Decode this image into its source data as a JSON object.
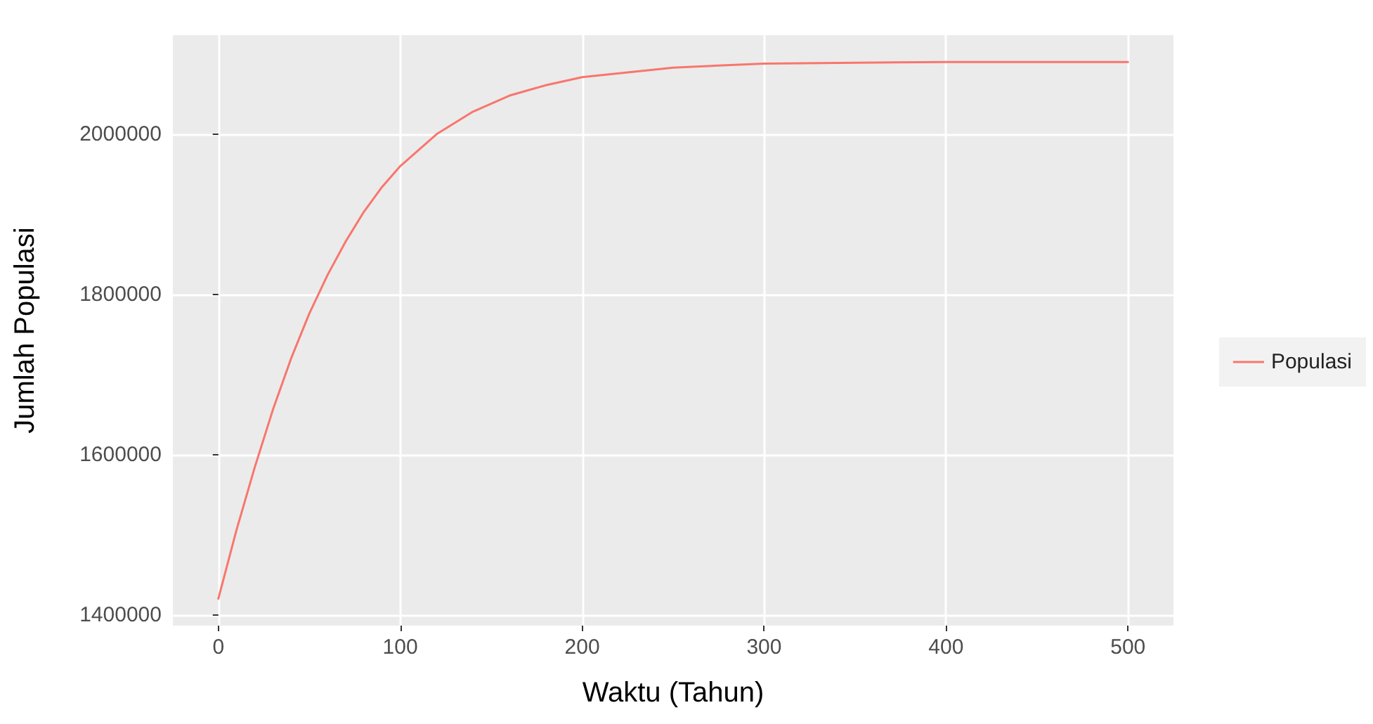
{
  "chart_data": {
    "type": "line",
    "xlabel": "Waktu (Tahun)",
    "ylabel": "Jumlah Populasi",
    "x": [
      0,
      10,
      20,
      30,
      40,
      50,
      60,
      70,
      80,
      90,
      100,
      120,
      140,
      160,
      180,
      200,
      250,
      300,
      400,
      500
    ],
    "series": [
      {
        "name": "Populasi",
        "color": "#f8766d",
        "values": [
          1420000,
          1506000,
          1584000,
          1656000,
          1720000,
          1776000,
          1824000,
          1866000,
          1903000,
          1934000,
          1960000,
          2000000,
          2028000,
          2048000,
          2061000,
          2071000,
          2083000,
          2088000,
          2090000,
          2090000
        ]
      }
    ],
    "xlim": [
      -25,
      525
    ],
    "xticks": [
      0,
      100,
      200,
      300,
      400,
      500
    ],
    "ylim": [
      1386500,
      2123500
    ],
    "yticks": [
      1400000,
      1600000,
      1800000,
      2000000
    ],
    "grid": true,
    "legend": "right",
    "marker": "none",
    "line_style": "solid"
  }
}
